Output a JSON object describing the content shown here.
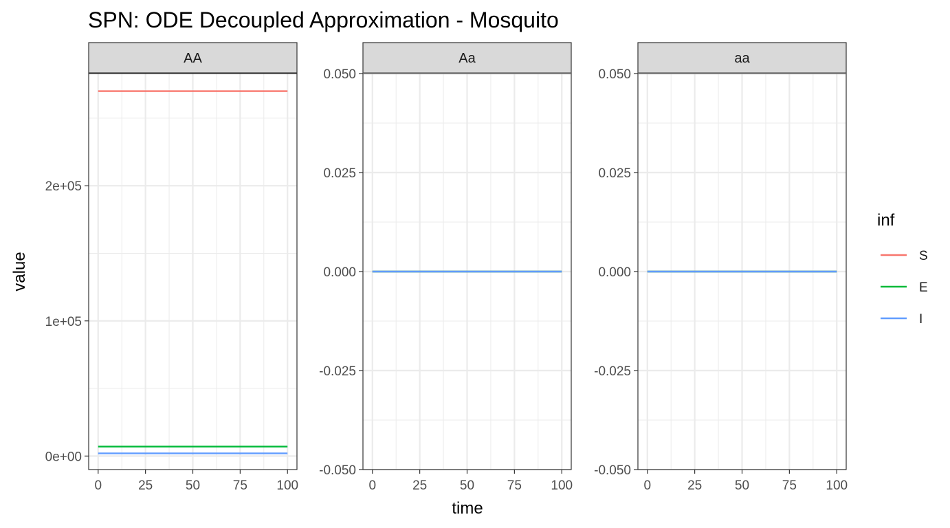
{
  "chart_data": {
    "type": "line",
    "title": "SPN: ODE Decoupled Approximation - Mosquito",
    "xlabel": "time",
    "ylabel": "value",
    "grid": true,
    "legend": {
      "title": "inf",
      "position": "right",
      "entries": [
        {
          "name": "S",
          "color": "#F8766D"
        },
        {
          "name": "E",
          "color": "#00BA38"
        },
        {
          "name": "I",
          "color": "#619CFF"
        }
      ]
    },
    "x": [
      0,
      25,
      50,
      75,
      100
    ],
    "panels": [
      {
        "strip": "AA",
        "xlim": [
          -5,
          105
        ],
        "ylim": [
          -10000,
          283000
        ],
        "xticks": [
          {
            "v": 0,
            "label": "0"
          },
          {
            "v": 25,
            "label": "25"
          },
          {
            "v": 50,
            "label": "50"
          },
          {
            "v": 75,
            "label": "75"
          },
          {
            "v": 100,
            "label": "100"
          }
        ],
        "yticks": [
          {
            "v": 0,
            "label": "0e+00"
          },
          {
            "v": 100000,
            "label": "1e+05"
          },
          {
            "v": 200000,
            "label": "2e+05"
          }
        ],
        "yminor": [
          50000,
          150000,
          250000
        ],
        "series": [
          {
            "name": "S",
            "values": [
              270000,
              270000,
              270000,
              270000,
              270000
            ]
          },
          {
            "name": "E",
            "values": [
              7000,
              7000,
              7000,
              7000,
              7000
            ]
          },
          {
            "name": "I",
            "values": [
              2000,
              2000,
              2000,
              2000,
              2000
            ]
          }
        ]
      },
      {
        "strip": "Aa",
        "xlim": [
          -5,
          105
        ],
        "ylim": [
          -0.05,
          0.05
        ],
        "xticks": [
          {
            "v": 0,
            "label": "0"
          },
          {
            "v": 25,
            "label": "25"
          },
          {
            "v": 50,
            "label": "50"
          },
          {
            "v": 75,
            "label": "75"
          },
          {
            "v": 100,
            "label": "100"
          }
        ],
        "yticks": [
          {
            "v": -0.05,
            "label": "-0.050"
          },
          {
            "v": -0.025,
            "label": "-0.025"
          },
          {
            "v": 0,
            "label": "0.000"
          },
          {
            "v": 0.025,
            "label": "0.025"
          },
          {
            "v": 0.05,
            "label": "0.050"
          }
        ],
        "yminor": [
          -0.0375,
          -0.0125,
          0.0125,
          0.0375
        ],
        "series": [
          {
            "name": "S",
            "values": [
              0,
              0,
              0,
              0,
              0
            ]
          },
          {
            "name": "E",
            "values": [
              0,
              0,
              0,
              0,
              0
            ]
          },
          {
            "name": "I",
            "values": [
              0,
              0,
              0,
              0,
              0
            ]
          }
        ]
      },
      {
        "strip": "aa",
        "xlim": [
          -5,
          105
        ],
        "ylim": [
          -0.05,
          0.05
        ],
        "xticks": [
          {
            "v": 0,
            "label": "0"
          },
          {
            "v": 25,
            "label": "25"
          },
          {
            "v": 50,
            "label": "50"
          },
          {
            "v": 75,
            "label": "75"
          },
          {
            "v": 100,
            "label": "100"
          }
        ],
        "yticks": [
          {
            "v": -0.05,
            "label": "-0.050"
          },
          {
            "v": -0.025,
            "label": "-0.025"
          },
          {
            "v": 0,
            "label": "0.000"
          },
          {
            "v": 0.025,
            "label": "0.025"
          },
          {
            "v": 0.05,
            "label": "0.050"
          }
        ],
        "yminor": [
          -0.0375,
          -0.0125,
          0.0125,
          0.0375
        ],
        "series": [
          {
            "name": "S",
            "values": [
              0,
              0,
              0,
              0,
              0
            ]
          },
          {
            "name": "E",
            "values": [
              0,
              0,
              0,
              0,
              0
            ]
          },
          {
            "name": "I",
            "values": [
              0,
              0,
              0,
              0,
              0
            ]
          }
        ]
      }
    ]
  }
}
